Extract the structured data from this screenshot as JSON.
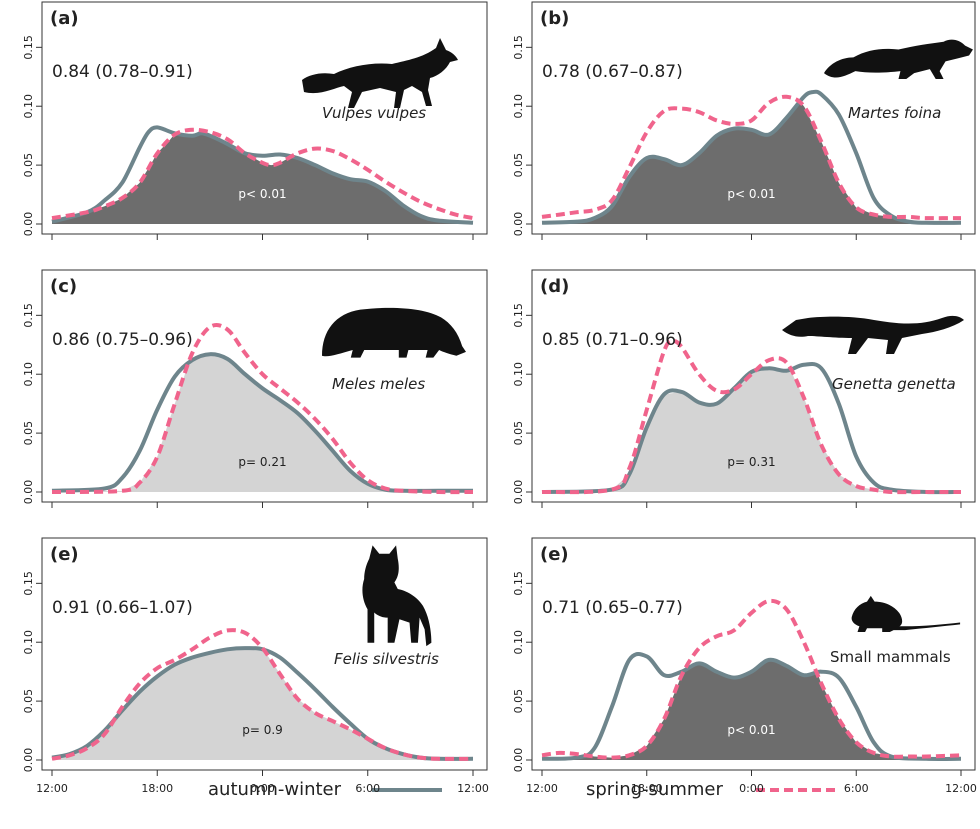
{
  "colors": {
    "autumn_winter": "#6e858c",
    "spring_summer": "#f0648c",
    "overlap_significant": "#6d6d6d",
    "overlap_nonsignificant": "#d4d4d4",
    "frame": "#333333"
  },
  "legend": {
    "autumn_winter": "autumn-winter",
    "spring_summer": "spring-summer"
  },
  "chart_data": [
    {
      "type": "area",
      "panel": "(a)",
      "overlap": "0.84 (0.78–0.91)",
      "species": "Vulpes vulpes",
      "species_style": "italic",
      "icon": "fox-silhouette-icon",
      "p_value": "p< 0.01",
      "significant": true,
      "x_ticks": [
        "12:00",
        "18:00",
        "0:00",
        "6:00",
        "12:00"
      ],
      "y_ticks": [
        "0.00",
        "0.05",
        "0.10",
        "0.15"
      ],
      "xlim": [
        12,
        36
      ],
      "ylim": [
        0,
        0.18
      ],
      "series": [
        {
          "name": "autumn-winter",
          "x": [
            12,
            14,
            15,
            16,
            17,
            17.5,
            18,
            19,
            20,
            20.5,
            21,
            22,
            23,
            24,
            25,
            26,
            27,
            28,
            29,
            30,
            31,
            32,
            33,
            34,
            36
          ],
          "y": [
            0.002,
            0.01,
            0.02,
            0.035,
            0.065,
            0.078,
            0.082,
            0.077,
            0.075,
            0.077,
            0.075,
            0.068,
            0.06,
            0.058,
            0.059,
            0.056,
            0.05,
            0.043,
            0.038,
            0.036,
            0.028,
            0.016,
            0.007,
            0.003,
            0.001
          ]
        },
        {
          "name": "spring-summer",
          "x": [
            12,
            14,
            15,
            16,
            17,
            18,
            19,
            20,
            21,
            22,
            23,
            24,
            24.5,
            25,
            26,
            27,
            28,
            29,
            30,
            31,
            32,
            33,
            34,
            35,
            36
          ],
          "y": [
            0.005,
            0.01,
            0.015,
            0.022,
            0.035,
            0.06,
            0.076,
            0.08,
            0.078,
            0.072,
            0.06,
            0.052,
            0.05,
            0.052,
            0.06,
            0.064,
            0.062,
            0.055,
            0.046,
            0.036,
            0.027,
            0.019,
            0.013,
            0.008,
            0.005
          ]
        }
      ]
    },
    {
      "type": "area",
      "panel": "(b)",
      "overlap": "0.78 (0.67–0.87)",
      "species": "Martes foina",
      "species_style": "italic",
      "icon": "marten-silhouette-icon",
      "p_value": "p< 0.01",
      "significant": true,
      "x_ticks": [
        "12:00",
        "18:00",
        "0:00",
        "6:00",
        "12:00"
      ],
      "y_ticks": [
        "0.00",
        "0.05",
        "0.10",
        "0.15"
      ],
      "xlim": [
        12,
        36
      ],
      "ylim": [
        0,
        0.18
      ],
      "series": [
        {
          "name": "autumn-winter",
          "x": [
            12,
            14,
            15,
            16,
            17,
            18,
            19,
            20,
            21,
            22,
            23,
            24,
            25,
            26,
            27,
            27.5,
            28,
            29,
            30,
            31,
            32,
            33,
            34,
            36
          ],
          "y": [
            0.001,
            0.002,
            0.005,
            0.015,
            0.04,
            0.056,
            0.055,
            0.05,
            0.06,
            0.075,
            0.081,
            0.08,
            0.076,
            0.09,
            0.108,
            0.112,
            0.11,
            0.093,
            0.06,
            0.022,
            0.007,
            0.002,
            0.001,
            0.001
          ]
        },
        {
          "name": "spring-summer",
          "x": [
            12,
            13,
            14,
            15,
            16,
            17,
            18,
            19,
            20,
            21,
            22,
            23,
            24,
            25,
            26,
            27,
            28,
            29,
            30,
            31,
            32,
            33,
            34,
            36
          ],
          "y": [
            0.006,
            0.008,
            0.01,
            0.012,
            0.02,
            0.048,
            0.078,
            0.096,
            0.098,
            0.095,
            0.088,
            0.085,
            0.088,
            0.103,
            0.108,
            0.1,
            0.07,
            0.035,
            0.014,
            0.008,
            0.006,
            0.006,
            0.005,
            0.005
          ]
        }
      ]
    },
    {
      "type": "area",
      "panel": "(c)",
      "overlap": "0.86 (0.75–0.96)",
      "species": "Meles meles",
      "species_style": "italic",
      "icon": "badger-silhouette-icon",
      "p_value": "p= 0.21",
      "significant": false,
      "x_ticks": [
        "12:00",
        "18:00",
        "0:00",
        "6:00",
        "12:00"
      ],
      "y_ticks": [
        "0.00",
        "0.05",
        "0.10",
        "0.15"
      ],
      "xlim": [
        12,
        36
      ],
      "ylim": [
        0,
        0.18
      ],
      "series": [
        {
          "name": "autumn-winter",
          "x": [
            12,
            15,
            16,
            17,
            18,
            19,
            20,
            21,
            22,
            23,
            24,
            25,
            26,
            27,
            28,
            29,
            30,
            31,
            32,
            34,
            36
          ],
          "y": [
            0.001,
            0.003,
            0.012,
            0.035,
            0.07,
            0.098,
            0.112,
            0.117,
            0.113,
            0.1,
            0.088,
            0.078,
            0.067,
            0.052,
            0.035,
            0.018,
            0.007,
            0.002,
            0.001,
            0.001,
            0.001
          ]
        },
        {
          "name": "spring-summer",
          "x": [
            12,
            16,
            17,
            18,
            19,
            20,
            21,
            22,
            23,
            24,
            25,
            26,
            27,
            28,
            29,
            30,
            31,
            32,
            34,
            36
          ],
          "y": [
            0.0,
            0.001,
            0.008,
            0.03,
            0.075,
            0.118,
            0.14,
            0.138,
            0.118,
            0.1,
            0.088,
            0.076,
            0.062,
            0.045,
            0.025,
            0.01,
            0.003,
            0.001,
            0.0,
            0.0
          ]
        }
      ]
    },
    {
      "type": "area",
      "panel": "(d)",
      "overlap": "0.85 (0.71–0.96)",
      "species": "Genetta genetta",
      "species_style": "italic",
      "icon": "genet-silhouette-icon",
      "p_value": "p= 0.31",
      "significant": false,
      "x_ticks": [
        "12:00",
        "18:00",
        "0:00",
        "6:00",
        "12:00"
      ],
      "y_ticks": [
        "0.00",
        "0.05",
        "0.10",
        "0.15"
      ],
      "xlim": [
        12,
        36
      ],
      "ylim": [
        0,
        0.18
      ],
      "series": [
        {
          "name": "autumn-winter",
          "x": [
            12,
            16,
            17,
            18,
            19,
            20,
            21,
            22,
            23,
            24,
            25,
            26,
            27,
            28,
            29,
            30,
            31,
            32,
            34,
            36
          ],
          "y": [
            0.0,
            0.002,
            0.015,
            0.055,
            0.083,
            0.085,
            0.076,
            0.075,
            0.088,
            0.102,
            0.105,
            0.103,
            0.108,
            0.105,
            0.075,
            0.03,
            0.008,
            0.002,
            0.0,
            0.0
          ]
        },
        {
          "name": "spring-summer",
          "x": [
            12,
            16,
            17,
            18,
            19,
            19.5,
            20,
            21,
            22,
            23,
            24,
            25,
            26,
            27,
            28,
            29,
            30,
            31,
            32,
            34,
            36
          ],
          "y": [
            0.0,
            0.002,
            0.02,
            0.07,
            0.12,
            0.128,
            0.123,
            0.1,
            0.086,
            0.087,
            0.1,
            0.112,
            0.11,
            0.08,
            0.04,
            0.015,
            0.005,
            0.002,
            0.0,
            0.0,
            0.0
          ]
        }
      ]
    },
    {
      "type": "area",
      "panel": "(e)",
      "overlap": "0.91 (0.66–1.07)",
      "species": "Felis silvestris",
      "species_style": "italic",
      "icon": "wildcat-silhouette-icon",
      "p_value": "p= 0.9",
      "significant": false,
      "x_ticks": [
        "12:00",
        "18:00",
        "0:00",
        "6:00",
        "12:00"
      ],
      "y_ticks": [
        "0.00",
        "0.05",
        "0.10",
        "0.15"
      ],
      "xlim": [
        12,
        36
      ],
      "ylim": [
        0,
        0.18
      ],
      "series": [
        {
          "name": "autumn-winter",
          "x": [
            12,
            13,
            14,
            15,
            16,
            17,
            18,
            19,
            20,
            21,
            22,
            23,
            24,
            25,
            26,
            27,
            28,
            29,
            30,
            31,
            32,
            33,
            34,
            36
          ],
          "y": [
            0.002,
            0.005,
            0.012,
            0.025,
            0.042,
            0.058,
            0.071,
            0.081,
            0.087,
            0.091,
            0.094,
            0.095,
            0.094,
            0.087,
            0.074,
            0.06,
            0.045,
            0.031,
            0.018,
            0.01,
            0.005,
            0.002,
            0.001,
            0.001
          ]
        },
        {
          "name": "spring-summer",
          "x": [
            12,
            13,
            14,
            15,
            16,
            17,
            18,
            19,
            20,
            21,
            22,
            23,
            24,
            25,
            26,
            27,
            28,
            29,
            30,
            31,
            32,
            33,
            34,
            36
          ],
          "y": [
            0.001,
            0.004,
            0.01,
            0.022,
            0.045,
            0.065,
            0.078,
            0.085,
            0.094,
            0.104,
            0.11,
            0.108,
            0.095,
            0.073,
            0.052,
            0.04,
            0.033,
            0.026,
            0.018,
            0.01,
            0.005,
            0.002,
            0.001,
            0.001
          ]
        }
      ]
    },
    {
      "type": "area",
      "panel": "(e)",
      "overlap": "0.71 (0.65–0.77)",
      "species": "Small mammals",
      "species_style": "normal",
      "icon": "mouse-silhouette-icon",
      "p_value": "p< 0.01",
      "significant": true,
      "x_ticks": [
        "12:00",
        "18:00",
        "0:00",
        "6:00",
        "12:00"
      ],
      "y_ticks": [
        "0.00",
        "0.05",
        "0.10",
        "0.15"
      ],
      "xlim": [
        12,
        36
      ],
      "ylim": [
        0,
        0.18
      ],
      "series": [
        {
          "name": "autumn-winter",
          "x": [
            12,
            14,
            15,
            16,
            17,
            18,
            19,
            20,
            21,
            22,
            23,
            24,
            25,
            26,
            27,
            28,
            29,
            30,
            31,
            32,
            34,
            36
          ],
          "y": [
            0.001,
            0.002,
            0.01,
            0.045,
            0.085,
            0.088,
            0.072,
            0.075,
            0.082,
            0.075,
            0.07,
            0.075,
            0.085,
            0.08,
            0.072,
            0.075,
            0.07,
            0.045,
            0.015,
            0.003,
            0.001,
            0.001
          ]
        },
        {
          "name": "spring-summer",
          "x": [
            12,
            13,
            14,
            15,
            16,
            17,
            18,
            19,
            20,
            21,
            22,
            23,
            24,
            25,
            26,
            27,
            28,
            29,
            30,
            31,
            32,
            33,
            34,
            36
          ],
          "y": [
            0.004,
            0.006,
            0.005,
            0.003,
            0.002,
            0.004,
            0.012,
            0.035,
            0.072,
            0.095,
            0.105,
            0.11,
            0.125,
            0.135,
            0.128,
            0.1,
            0.065,
            0.035,
            0.015,
            0.006,
            0.003,
            0.003,
            0.003,
            0.004
          ]
        }
      ]
    }
  ]
}
